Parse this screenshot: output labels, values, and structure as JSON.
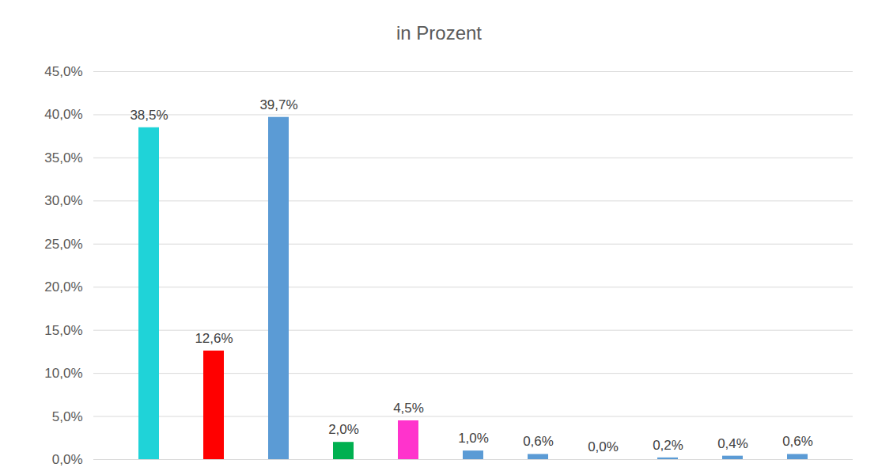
{
  "chart_data": {
    "type": "bar",
    "title": "in Prozent",
    "categories": [
      null,
      null,
      null,
      null,
      null,
      null,
      null,
      null,
      null,
      null,
      null
    ],
    "values": [
      38.5,
      12.6,
      39.7,
      2.0,
      4.5,
      1.0,
      0.6,
      0.0,
      0.2,
      0.4,
      0.6
    ],
    "value_labels": [
      "38,5%",
      "12,6%",
      "39,7%",
      "2,0%",
      "4,5%",
      "1,0%",
      "0,6%",
      "0,0%",
      "0,2%",
      "0,4%",
      "0,6%"
    ],
    "colors": [
      "#1fd3d8",
      "#ff0000",
      "#5b9bd5",
      "#00b050",
      "#ff33cc",
      "#5b9bd5",
      "#5b9bd5",
      "#5b9bd5",
      "#5b9bd5",
      "#5b9bd5",
      "#5b9bd5"
    ],
    "ylim": [
      0,
      45
    ],
    "yticks": [
      {
        "value": 0,
        "label": "0,0%"
      },
      {
        "value": 5,
        "label": "5,0%"
      },
      {
        "value": 10,
        "label": "10,0%"
      },
      {
        "value": 15,
        "label": "15,0%"
      },
      {
        "value": 20,
        "label": "20,0%"
      },
      {
        "value": 25,
        "label": "25,0%"
      },
      {
        "value": 30,
        "label": "30,0%"
      },
      {
        "value": 35,
        "label": "35,0%"
      },
      {
        "value": 40,
        "label": "40,0%"
      },
      {
        "value": 45,
        "label": "45,0%"
      }
    ],
    "grid": true,
    "data_labels": true,
    "tick_labels": "y"
  }
}
